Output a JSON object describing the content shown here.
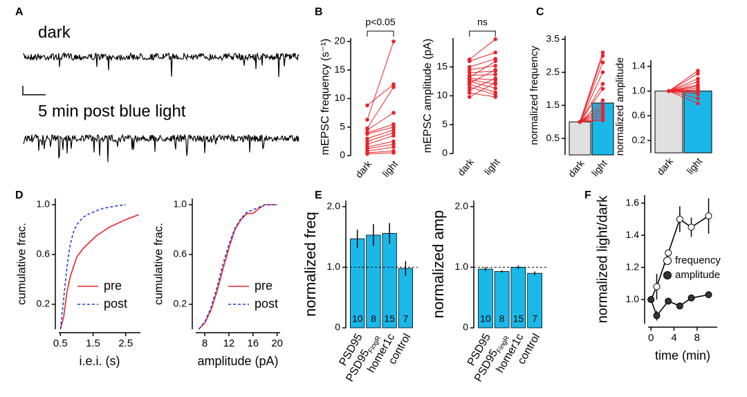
{
  "chart_data": [
    {
      "type": "trace",
      "label": "A",
      "traces": [
        "dark",
        "5 min post blue light"
      ]
    },
    {
      "type": "paired",
      "label": "B",
      "ylabel": "mEPSC frequency (s⁻¹)",
      "annotation": "p<0.05",
      "categories": [
        "dark",
        "light"
      ],
      "color": "#e8242a",
      "values": [
        [
          8.8,
          12.5
        ],
        [
          6.3,
          20
        ],
        [
          4.8,
          12
        ],
        [
          4.5,
          7.5
        ],
        [
          4.0,
          5.5
        ],
        [
          3.8,
          5
        ],
        [
          3.0,
          4.5
        ],
        [
          2.5,
          4
        ],
        [
          2.0,
          3.5
        ],
        [
          1.5,
          2.5
        ],
        [
          1.2,
          2
        ],
        [
          0.8,
          1.5
        ],
        [
          0.5,
          0.8
        ],
        [
          0.3,
          0.5
        ]
      ],
      "ylim": [
        0,
        20.6
      ],
      "yticks": [
        0,
        5,
        10,
        15,
        20
      ]
    },
    {
      "type": "paired",
      "ylabel": "mEPSC amplitude (pA)",
      "annotation": "ns",
      "categories": [
        "dark",
        "light"
      ],
      "color": "#e8242a",
      "values": [
        [
          16.3,
          19.8
        ],
        [
          16,
          17.5
        ],
        [
          15,
          16.4
        ],
        [
          14.5,
          15.2
        ],
        [
          14,
          14.3
        ],
        [
          13.5,
          13.7
        ],
        [
          13.2,
          16
        ],
        [
          13,
          12.8
        ],
        [
          12.8,
          12
        ],
        [
          12.5,
          11.3
        ],
        [
          12.2,
          14.5
        ],
        [
          12,
          10.6
        ],
        [
          11.5,
          10.2
        ],
        [
          11,
          13
        ],
        [
          10.5,
          9.8
        ],
        [
          9.8,
          12.3
        ]
      ],
      "ylim": [
        0,
        20
      ],
      "yticks": [
        0,
        5,
        10,
        15
      ]
    },
    {
      "type": "bar_paired",
      "label": "C",
      "ylabel": "normalized frequency",
      "categories": [
        "dark",
        "light"
      ],
      "bars": [
        1,
        1.57
      ],
      "bar_colors": [
        "#e0e0e0",
        "#1ab8e8"
      ],
      "color": "#e8242a",
      "values": [
        [
          1,
          3.1
        ],
        [
          1,
          3.0
        ],
        [
          1,
          2.8
        ],
        [
          1,
          2.5
        ],
        [
          1,
          2.15
        ],
        [
          1,
          2.0
        ],
        [
          1,
          1.65
        ],
        [
          1,
          1.5
        ],
        [
          1,
          1.4
        ],
        [
          1,
          1.3
        ],
        [
          1,
          1.2
        ],
        [
          1,
          1.1
        ],
        [
          1,
          1.05
        ]
      ],
      "ylim": [
        0,
        3.6
      ],
      "yticks": [
        0.5,
        1.5,
        2.5,
        3.5
      ]
    },
    {
      "type": "bar_paired",
      "ylabel": "normalized amplitude",
      "categories": [
        "dark",
        "light"
      ],
      "bars": [
        1,
        1
      ],
      "bar_colors": [
        "#e0e0e0",
        "#1ab8e8"
      ],
      "color": "#e8242a",
      "values": [
        [
          1,
          1.33
        ],
        [
          1,
          1.28
        ],
        [
          1,
          1.2
        ],
        [
          1,
          1.15
        ],
        [
          1,
          1.1
        ],
        [
          1,
          1.08
        ],
        [
          1,
          1.05
        ],
        [
          1,
          1.02
        ],
        [
          1,
          1.0
        ],
        [
          1,
          0.98
        ],
        [
          1,
          0.95
        ],
        [
          1,
          0.88
        ],
        [
          1,
          0.8
        ]
      ],
      "ylim": [
        0,
        1.5
      ],
      "yticks": [
        0.2,
        0.6,
        {
          "value": 1,
          "label": "1.0"
        },
        1.4
      ]
    },
    {
      "type": "line",
      "label": "D",
      "xlabel": "i.e.i. (s)",
      "ylabel": "cumulative frac.",
      "xlim": [
        0.45,
        2.95
      ],
      "xticks": [
        0.5,
        1.5,
        2.5
      ],
      "ylim": [
        0,
        1.05
      ],
      "yticks": [
        0.2,
        0.6,
        {
          "value": 1,
          "label": "1.0"
        }
      ],
      "series": [
        {
          "name": "pre",
          "color": "#e8242a",
          "dash": false,
          "x": [
            0.5,
            0.6,
            0.7,
            0.8,
            0.9,
            1.0,
            1.2,
            1.4,
            1.6,
            2.0,
            2.5,
            2.9
          ],
          "values": [
            0,
            0.1,
            0.3,
            0.42,
            0.5,
            0.58,
            0.65,
            0.7,
            0.75,
            0.82,
            0.88,
            0.92
          ]
        },
        {
          "name": "post",
          "color": "#1f3fd6",
          "dash": true,
          "x": [
            0.5,
            0.6,
            0.7,
            0.8,
            0.9,
            1.0,
            1.2,
            1.4,
            1.8,
            2.2,
            2.5
          ],
          "values": [
            0,
            0.25,
            0.5,
            0.68,
            0.78,
            0.84,
            0.9,
            0.93,
            0.97,
            0.99,
            1.0
          ]
        }
      ]
    },
    {
      "type": "line",
      "xlabel": "amplitude (pA)",
      "ylabel": "cumulative frac.",
      "xlim": [
        6.5,
        20.5
      ],
      "xticks": [
        8,
        12,
        16,
        20
      ],
      "ylim": [
        0,
        1.05
      ],
      "yticks": [
        0.2,
        0.6,
        {
          "value": 1,
          "label": "1.0"
        }
      ],
      "series": [
        {
          "name": "pre",
          "color": "#e8242a",
          "dash": false,
          "x": [
            7,
            8,
            9,
            10,
            11,
            12,
            13,
            14,
            15,
            16,
            17,
            18,
            20
          ],
          "values": [
            0,
            0.05,
            0.15,
            0.3,
            0.48,
            0.65,
            0.8,
            0.88,
            0.93,
            0.93,
            0.97,
            1.0,
            1.0
          ]
        },
        {
          "name": "post",
          "color": "#1f3fd6",
          "dash": true,
          "x": [
            7,
            8,
            9,
            10,
            11,
            12,
            13,
            14,
            15,
            16,
            17,
            18,
            20
          ],
          "values": [
            0,
            0.06,
            0.17,
            0.33,
            0.52,
            0.68,
            0.81,
            0.89,
            0.94,
            0.96,
            0.98,
            1.0,
            1.0
          ]
        }
      ]
    },
    {
      "type": "bar",
      "label": "E",
      "ylabel": "normalized freq",
      "categories": [
        "PSD95",
        {
          "text": "PSD95",
          "sub": "FingR"
        },
        "homer1c",
        "control"
      ],
      "color": "#1ab8e8",
      "values": [
        1.47,
        1.53,
        1.56,
        0.98
      ],
      "errors": [
        0.15,
        0.18,
        0.17,
        0.12
      ],
      "n": [
        10,
        8,
        15,
        7
      ],
      "hline": 1,
      "ylim": [
        0,
        2.1
      ],
      "yticks": [
        0,
        {
          "value": 1,
          "label": "1.0"
        },
        {
          "value": 2,
          "label": "2.0"
        }
      ]
    },
    {
      "type": "bar",
      "ylabel": "normalized amp",
      "categories": [
        "PSD95",
        {
          "text": "PSD95",
          "sub": "FingR"
        },
        "homer1c",
        "control"
      ],
      "color": "#1ab8e8",
      "values": [
        0.97,
        0.93,
        1.0,
        0.9
      ],
      "errors": [
        0.03,
        0.02,
        0.03,
        0.03
      ],
      "n": [
        10,
        8,
        15,
        7
      ],
      "hline": 1,
      "ylim": [
        0,
        2.1
      ],
      "yticks": [
        0,
        {
          "value": 1,
          "label": "1.0"
        },
        {
          "value": 2,
          "label": "2.0"
        }
      ]
    },
    {
      "type": "errorline",
      "label": "F",
      "xlabel": "time (min)",
      "ylabel": "normalized light/dark",
      "x": [
        0,
        1,
        3,
        5,
        7,
        10
      ],
      "xlim": [
        -0.5,
        11.5
      ],
      "xticks": [
        0,
        4,
        8
      ],
      "ylim": [
        0.85,
        1.65
      ],
      "yticks": [
        {
          "value": 1,
          "label": "1.0"
        },
        1.2,
        1.4,
        1.6
      ],
      "series": [
        {
          "name": "frequency",
          "color": "#ffffff",
          "values": [
            1.0,
            1.08,
            1.29,
            1.5,
            1.45,
            1.52
          ],
          "errors": [
            0,
            0.08,
            0,
            0.08,
            0.06,
            0.11
          ]
        },
        {
          "name": "amplitude",
          "color": "#333333",
          "values": [
            1.0,
            0.9,
            0.99,
            0.96,
            1.01,
            1.03
          ],
          "errors": [
            0,
            0.03,
            0.01,
            0.02,
            0.02,
            0.02
          ]
        }
      ]
    }
  ]
}
